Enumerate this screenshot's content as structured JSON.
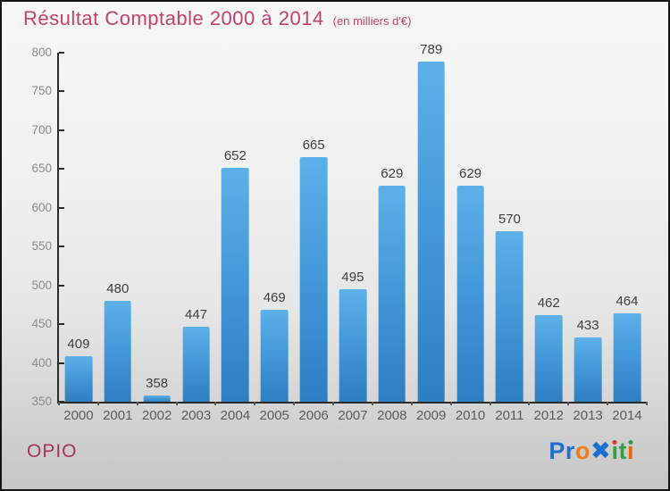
{
  "header": {
    "title": "Résultat Comptable 2000 à 2014",
    "subtitle": "(en milliers d'€)"
  },
  "footer": {
    "org_label": "OPIO"
  },
  "brand": {
    "logo_name": "Proxiti",
    "logo_letters": [
      {
        "char": "P",
        "color": "#1d6fd2"
      },
      {
        "char": "r",
        "color": "#1d6fd2"
      },
      {
        "char": "o",
        "color": "#ef7d13"
      },
      {
        "char": "✖",
        "color": "#1d6fd2",
        "icon": "proxiti-x-icon"
      },
      {
        "char": "i",
        "color": "#2fa043",
        "dot_color": "#e0391e"
      },
      {
        "char": "t",
        "color": "#2fa043"
      },
      {
        "char": "i",
        "color": "#e8650f",
        "dot_color": "#2fa043"
      }
    ]
  },
  "colors": {
    "title": "#c4426a",
    "org": "#a93459",
    "bar_top": "#5cb1e8",
    "bar_mid": "#459ad9",
    "bar_bottom": "#2e7ec2",
    "axis": "#2b2b2b",
    "ylabel": "#8a8a8a",
    "xlabel": "#5a5a5a",
    "value_label": "#3f3f3f"
  },
  "chart_data": {
    "type": "bar",
    "title": "Résultat Comptable 2000 à 2014 (en milliers d'€)",
    "categories": [
      "2000",
      "2001",
      "2002",
      "2003",
      "2004",
      "2005",
      "2006",
      "2007",
      "2008",
      "2009",
      "2010",
      "2011",
      "2012",
      "2013",
      "2014"
    ],
    "values": [
      409,
      480,
      358,
      447,
      652,
      469,
      665,
      495,
      629,
      789,
      629,
      570,
      462,
      433,
      464
    ],
    "xlabel": "",
    "ylabel": "",
    "ylim": [
      350,
      800
    ],
    "yticks": [
      350,
      400,
      450,
      500,
      550,
      600,
      650,
      700,
      750,
      800
    ],
    "grid": false,
    "legend": false,
    "value_labels": true
  }
}
